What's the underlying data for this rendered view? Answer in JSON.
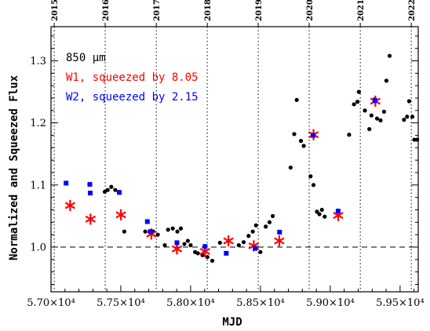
{
  "chart_data": {
    "type": "scatter",
    "xlabel": "MJD",
    "ylabel": "Normalized and Squeezed Flux",
    "xlim": [
      57000,
      59630
    ],
    "ylim": [
      0.928,
      1.355
    ],
    "x_ticks": [
      57000,
      57500,
      58000,
      58500,
      59000,
      59500
    ],
    "x_tick_labels": [
      "5.70×10⁴",
      "5.75×10⁴",
      "5.80×10⁴",
      "5.85×10⁴",
      "5.90×10⁴",
      "5.95×10⁴"
    ],
    "y_ticks": [
      1.0,
      1.1,
      1.2,
      1.3
    ],
    "y_tick_labels": [
      "1.0",
      "1.1",
      "1.2",
      "1.3"
    ],
    "reference_line": 1.0,
    "year_markers": [
      {
        "label": "2015",
        "mjd": 57023
      },
      {
        "label": "2016",
        "mjd": 57388
      },
      {
        "label": "2017",
        "mjd": 57754
      },
      {
        "label": "2018",
        "mjd": 58119
      },
      {
        "label": "2019",
        "mjd": 58484
      },
      {
        "label": "2020",
        "mjd": 58849
      },
      {
        "label": "2021",
        "mjd": 59215
      },
      {
        "label": "2022",
        "mjd": 59580
      }
    ],
    "legend": [
      {
        "text": "850 μm",
        "color": "#000000"
      },
      {
        "text": "W1, squeezed by 8.05",
        "color": "#ff0000"
      },
      {
        "text": "W2, squeezed by 2.15",
        "color": "#0000ff"
      }
    ],
    "series": [
      {
        "name": "850 μm",
        "marker": "dot",
        "color": "#000000",
        "points": [
          [
            57385,
            1.089
          ],
          [
            57406,
            1.092
          ],
          [
            57432,
            1.097
          ],
          [
            57460,
            1.092
          ],
          [
            57485,
            1.089
          ],
          [
            57525,
            1.025
          ],
          [
            57675,
            1.025
          ],
          [
            57733,
            1.025
          ],
          [
            57765,
            1.02
          ],
          [
            57815,
            1.003
          ],
          [
            57838,
            1.028
          ],
          [
            57872,
            1.03
          ],
          [
            57905,
            1.025
          ],
          [
            57930,
            1.03
          ],
          [
            57955,
            1.005
          ],
          [
            57980,
            1.01
          ],
          [
            58000,
            1.003
          ],
          [
            58032,
            0.992
          ],
          [
            58052,
            0.99
          ],
          [
            58085,
            0.987
          ],
          [
            58120,
            0.984
          ],
          [
            58155,
            0.978
          ],
          [
            58210,
            1.007
          ],
          [
            58345,
            1.003
          ],
          [
            58380,
            1.008
          ],
          [
            58415,
            1.018
          ],
          [
            58445,
            1.025
          ],
          [
            58468,
            1.035
          ],
          [
            58500,
            0.992
          ],
          [
            58538,
            1.033
          ],
          [
            58565,
            1.04
          ],
          [
            58588,
            1.05
          ],
          [
            58716,
            1.128
          ],
          [
            58742,
            1.182
          ],
          [
            58760,
            1.237
          ],
          [
            58790,
            1.171
          ],
          [
            58810,
            1.163
          ],
          [
            58859,
            1.114
          ],
          [
            58880,
            1.1
          ],
          [
            58905,
            1.057
          ],
          [
            58922,
            1.053
          ],
          [
            58940,
            1.06
          ],
          [
            58960,
            1.049
          ],
          [
            59135,
            1.181
          ],
          [
            59170,
            1.23
          ],
          [
            59195,
            1.234
          ],
          [
            59205,
            1.25
          ],
          [
            59248,
            1.22
          ],
          [
            59280,
            1.19
          ],
          [
            59295,
            1.212
          ],
          [
            59318,
            1.238
          ],
          [
            59335,
            1.207
          ],
          [
            59360,
            1.204
          ],
          [
            59385,
            1.218
          ],
          [
            59402,
            1.268
          ],
          [
            59425,
            1.308
          ],
          [
            59528,
            1.205
          ],
          [
            59550,
            1.21
          ],
          [
            59565,
            1.235
          ],
          [
            59588,
            1.21
          ],
          [
            59602,
            1.173
          ],
          [
            59622,
            1.173
          ]
        ]
      },
      {
        "name": "W1, squeezed by 8.05",
        "marker": "asterisk",
        "color": "#ff0000",
        "points": [
          [
            57137,
            1.067
          ],
          [
            57283,
            1.045
          ],
          [
            57501,
            1.052
          ],
          [
            57719,
            1.021
          ],
          [
            57902,
            0.997
          ],
          [
            58103,
            0.993
          ],
          [
            58271,
            1.01
          ],
          [
            58452,
            1.002
          ],
          [
            58635,
            1.01
          ],
          [
            58880,
            1.181
          ],
          [
            59057,
            1.051
          ],
          [
            59323,
            1.235
          ]
        ]
      },
      {
        "name": "W2, squeezed by 2.15",
        "marker": "square",
        "color": "#0000ff",
        "points": [
          [
            57108,
            1.103
          ],
          [
            57278,
            1.101
          ],
          [
            57281,
            1.087
          ],
          [
            57489,
            1.088
          ],
          [
            57690,
            1.041
          ],
          [
            57712,
            1.025
          ],
          [
            57902,
            1.007
          ],
          [
            58103,
            1.001
          ],
          [
            58255,
            0.99
          ],
          [
            58462,
            0.998
          ],
          [
            58637,
            1.024
          ],
          [
            58877,
            1.18
          ],
          [
            59056,
            1.058
          ],
          [
            59320,
            1.236
          ]
        ]
      }
    ]
  }
}
